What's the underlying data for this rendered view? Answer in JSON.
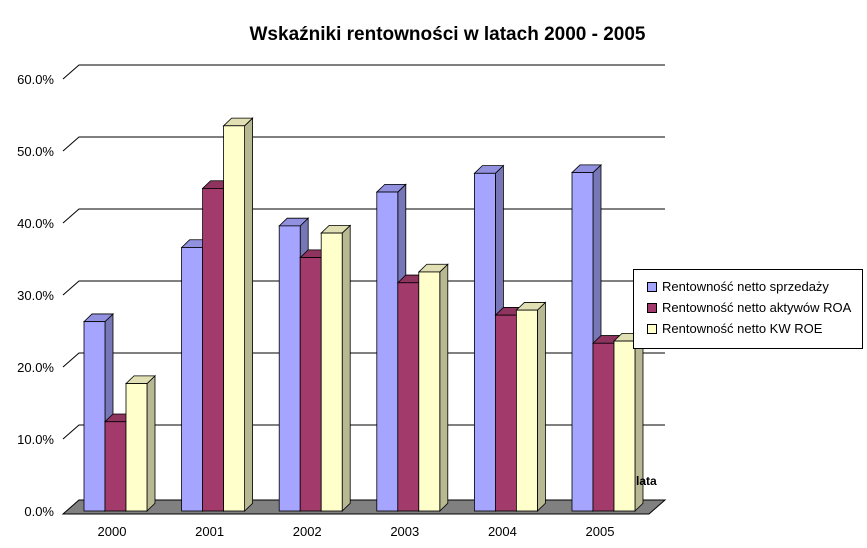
{
  "chart_data": {
    "type": "bar",
    "title": "Wskaźniki rentowności w latach 2000 - 2005",
    "xlabel": "lata",
    "ylabel": "",
    "categories": [
      "2000",
      "2001",
      "2002",
      "2003",
      "2004",
      "2005"
    ],
    "series": [
      {
        "name": "Rentowność netto sprzedaży",
        "values": [
          26.3,
          36.6,
          39.6,
          44.3,
          46.9,
          47.0
        ],
        "color": "#a5a5ff"
      },
      {
        "name": "Rentowność netto aktywów ROA",
        "values": [
          12.4,
          44.8,
          35.2,
          31.7,
          27.2,
          23.3
        ],
        "color": "#a23a6c"
      },
      {
        "name": "Rentowność netto KW ROE",
        "values": [
          17.7,
          53.5,
          38.6,
          33.2,
          27.9,
          23.6
        ],
        "color": "#ffffcc"
      }
    ],
    "y_ticks": [
      "0.0%",
      "10.0%",
      "20.0%",
      "30.0%",
      "40.0%",
      "50.0%",
      "60.0%"
    ],
    "ylim": [
      0,
      60
    ],
    "grid": true,
    "legend_position": "right"
  }
}
